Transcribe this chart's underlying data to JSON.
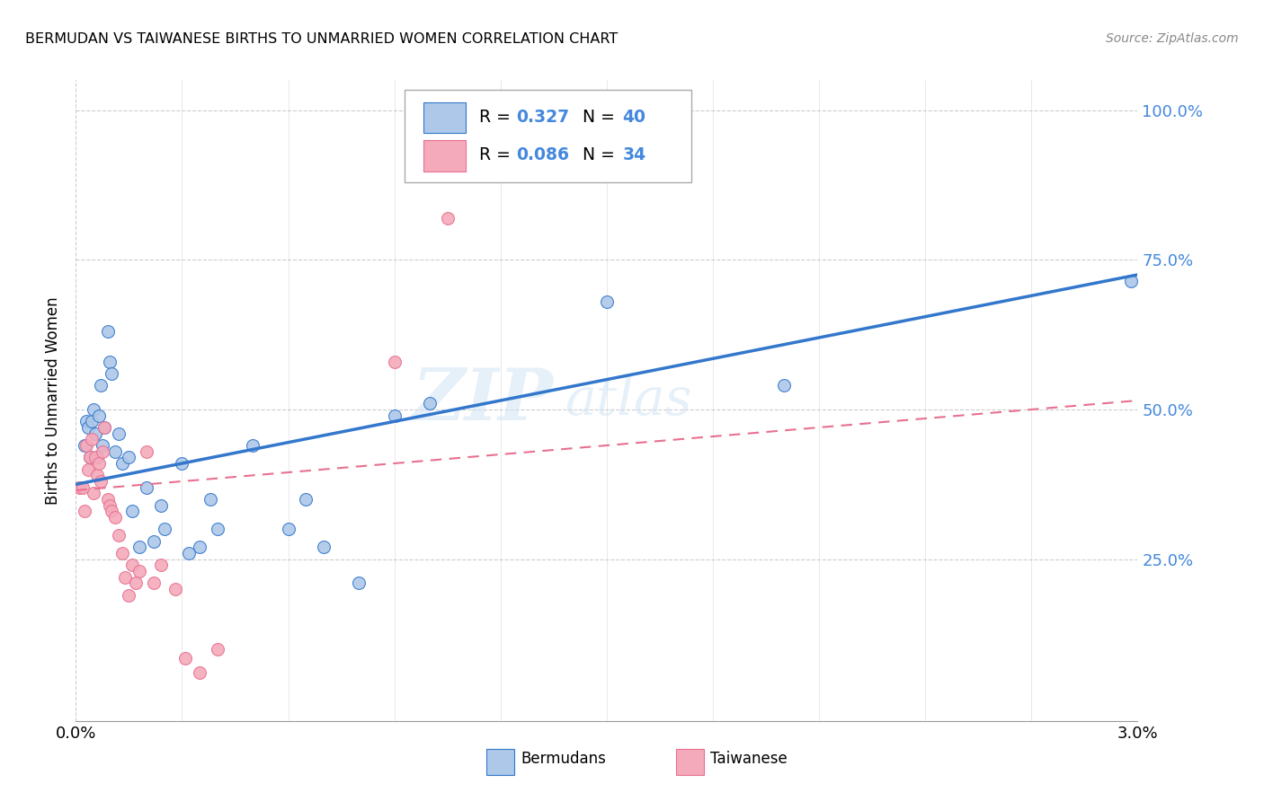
{
  "title": "BERMUDAN VS TAIWANESE BIRTHS TO UNMARRIED WOMEN CORRELATION CHART",
  "source": "Source: ZipAtlas.com",
  "ylabel": "Births to Unmarried Women",
  "watermark_line1": "ZIP",
  "watermark_line2": "atlas",
  "legend_r_bermuda": "0.327",
  "legend_n_bermuda": "40",
  "legend_r_taiwan": "0.086",
  "legend_n_taiwan": "34",
  "bermuda_color": "#adc8e8",
  "taiwan_color": "#f4aabb",
  "trend_bermuda_color": "#3377cc",
  "trend_taiwan_color": "#e87090",
  "background_color": "#ffffff",
  "grid_color": "#cccccc",
  "scatter_size": 100,
  "ytick_color": "#4488dd",
  "xlim": [
    0.0,
    0.03
  ],
  "ylim": [
    -0.02,
    1.05
  ],
  "yticks": [
    0.0,
    0.25,
    0.5,
    0.75,
    1.0
  ],
  "ytick_labels": [
    "",
    "25.0%",
    "50.0%",
    "75.0%",
    "100.0%"
  ],
  "xticks": [
    0.0,
    0.003,
    0.006,
    0.009,
    0.012,
    0.015,
    0.018,
    0.021,
    0.024,
    0.027,
    0.03
  ],
  "trend_b_x0": 0.0,
  "trend_b_y0": 0.375,
  "trend_b_x1": 0.03,
  "trend_b_y1": 0.725,
  "trend_t_x0": 0.0,
  "trend_t_y0": 0.365,
  "trend_t_x1": 0.03,
  "trend_t_y1": 0.515,
  "bermuda_points_x": [
    0.00025,
    0.0003,
    0.00035,
    0.0004,
    0.00045,
    0.0005,
    0.00055,
    0.0006,
    0.00065,
    0.0007,
    0.00075,
    0.0008,
    0.0009,
    0.00095,
    0.001,
    0.0011,
    0.0012,
    0.0013,
    0.0015,
    0.0016,
    0.0018,
    0.002,
    0.0022,
    0.0024,
    0.0025,
    0.003,
    0.0032,
    0.0035,
    0.0038,
    0.004,
    0.005,
    0.006,
    0.0065,
    0.007,
    0.008,
    0.009,
    0.01,
    0.015,
    0.02,
    0.0298
  ],
  "bermuda_points_y": [
    0.44,
    0.48,
    0.47,
    0.42,
    0.48,
    0.5,
    0.46,
    0.42,
    0.49,
    0.54,
    0.44,
    0.47,
    0.63,
    0.58,
    0.56,
    0.43,
    0.46,
    0.41,
    0.42,
    0.33,
    0.27,
    0.37,
    0.28,
    0.34,
    0.3,
    0.41,
    0.26,
    0.27,
    0.35,
    0.3,
    0.44,
    0.3,
    0.35,
    0.27,
    0.21,
    0.49,
    0.51,
    0.68,
    0.54,
    0.715
  ],
  "taiwan_points_x": [
    0.0001,
    0.0002,
    0.00025,
    0.0003,
    0.00035,
    0.0004,
    0.00045,
    0.0005,
    0.00055,
    0.0006,
    0.00065,
    0.0007,
    0.00075,
    0.0008,
    0.0009,
    0.00095,
    0.001,
    0.0011,
    0.0012,
    0.0013,
    0.0014,
    0.0015,
    0.0016,
    0.0017,
    0.0018,
    0.002,
    0.0022,
    0.0024,
    0.0028,
    0.0031,
    0.0035,
    0.004,
    0.009,
    0.0105
  ],
  "taiwan_points_y": [
    0.37,
    0.37,
    0.33,
    0.44,
    0.4,
    0.42,
    0.45,
    0.36,
    0.42,
    0.39,
    0.41,
    0.38,
    0.43,
    0.47,
    0.35,
    0.34,
    0.33,
    0.32,
    0.29,
    0.26,
    0.22,
    0.19,
    0.24,
    0.21,
    0.23,
    0.43,
    0.21,
    0.24,
    0.2,
    0.085,
    0.06,
    0.1,
    0.58,
    0.82
  ]
}
